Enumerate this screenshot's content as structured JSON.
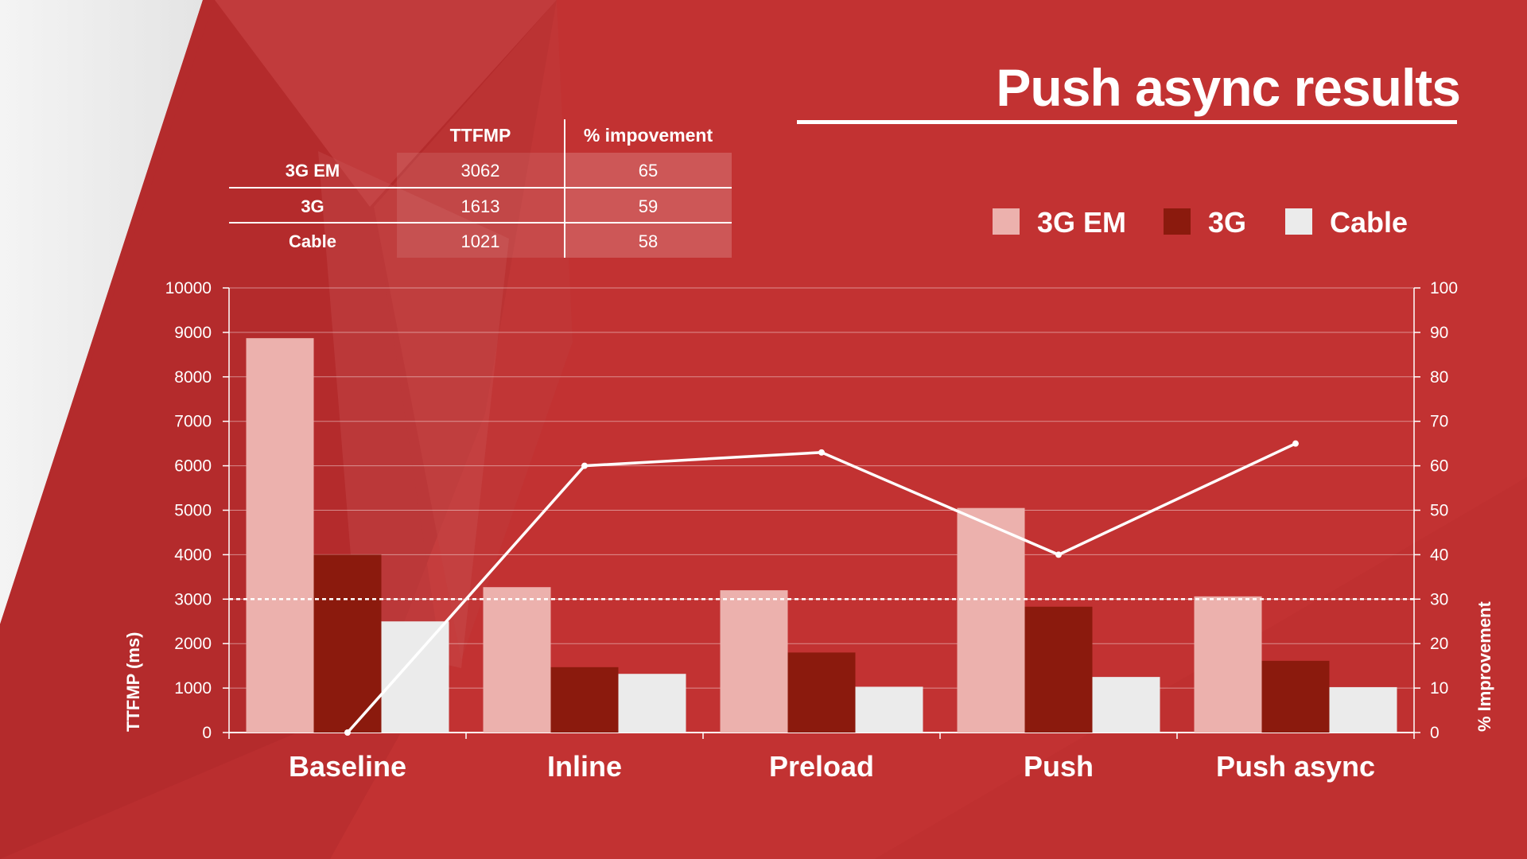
{
  "page": {
    "title": "Push async results"
  },
  "colors": {
    "series_3g_em": "#ecb1ad",
    "series_3g": "#8b1a0d",
    "series_cable": "#ebebeb",
    "line": "#ffffff",
    "background": "#c23232"
  },
  "table": {
    "headers": [
      "",
      "TTFMP",
      "% impovement"
    ],
    "rows": [
      {
        "label": "3G EM",
        "ttfmp": "3062",
        "improvement": "65"
      },
      {
        "label": "3G",
        "ttfmp": "1613",
        "improvement": "59"
      },
      {
        "label": "Cable",
        "ttfmp": "1021",
        "improvement": "58"
      }
    ]
  },
  "chart_data": {
    "type": "bar",
    "categories": [
      "Baseline",
      "Inline",
      "Preload",
      "Push",
      "Push async"
    ],
    "series": [
      {
        "name": "3G EM",
        "values": [
          8870,
          3270,
          3200,
          5050,
          3062
        ]
      },
      {
        "name": "3G",
        "values": [
          4000,
          1470,
          1800,
          2830,
          1613
        ]
      },
      {
        "name": "Cable",
        "values": [
          2500,
          1320,
          1030,
          1250,
          1021
        ]
      }
    ],
    "line_series": {
      "name": "% Improvement",
      "axis": "right",
      "values": [
        0,
        60,
        63,
        40,
        65
      ]
    },
    "reference_line": {
      "axis": "left",
      "value": 3000,
      "style": "dashed"
    },
    "xlabel": "",
    "ylabel": "TTFMP (ms)",
    "y2label": "% Improvement",
    "ylim": [
      0,
      10000
    ],
    "y2lim": [
      0,
      100
    ],
    "yticks": [
      "0",
      "1000",
      "2000",
      "3000",
      "4000",
      "5000",
      "6000",
      "7000",
      "8000",
      "9000",
      "10000"
    ],
    "y2ticks": [
      "0",
      "10",
      "20",
      "30",
      "40",
      "50",
      "60",
      "70",
      "80",
      "90",
      "100"
    ],
    "grid": true,
    "legend": "top-right"
  }
}
